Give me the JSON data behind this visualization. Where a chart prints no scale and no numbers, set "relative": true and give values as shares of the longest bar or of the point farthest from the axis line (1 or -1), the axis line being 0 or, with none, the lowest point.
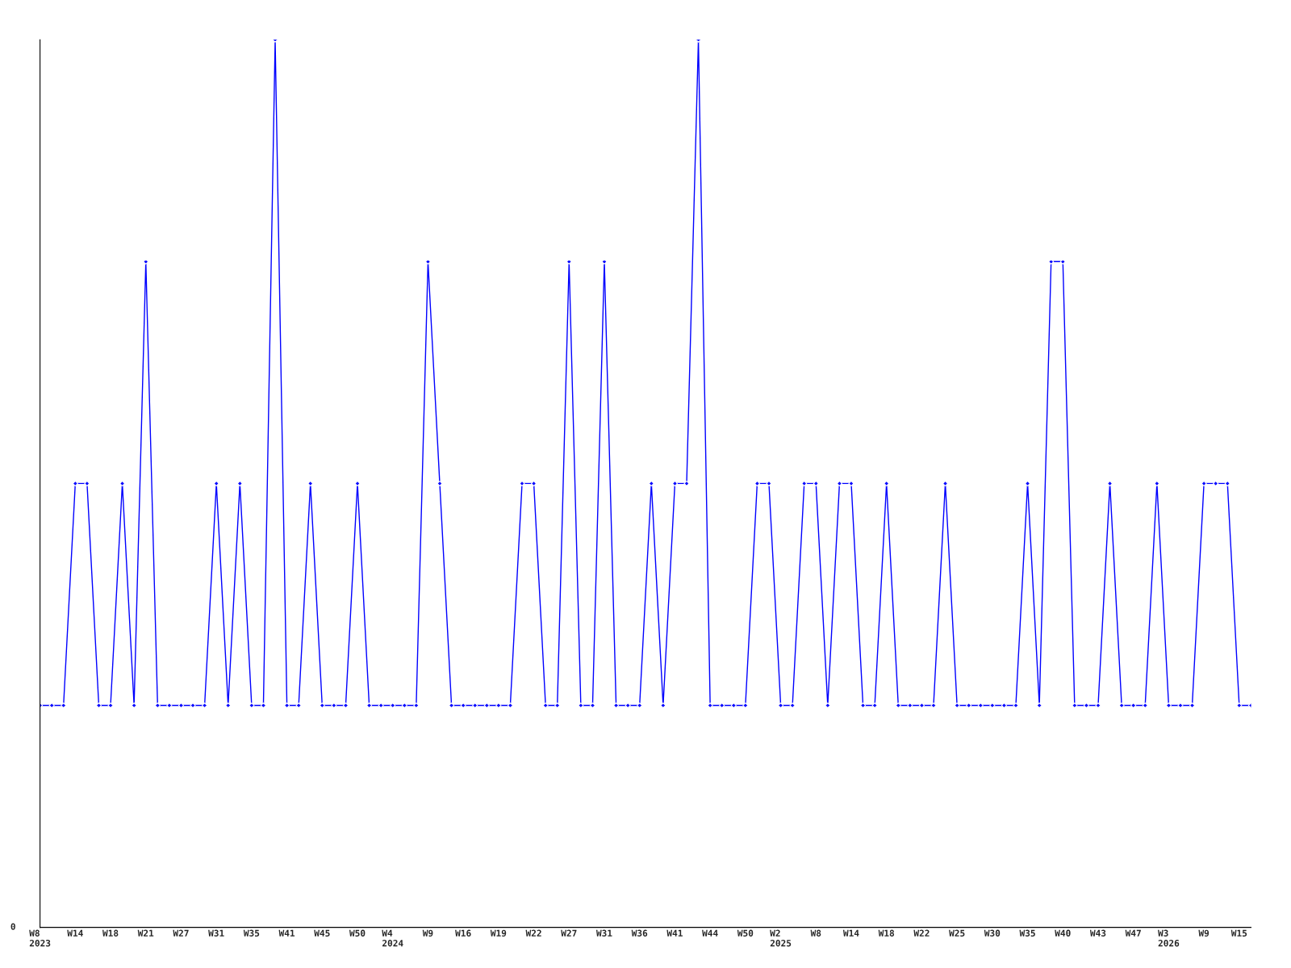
{
  "chart_data": {
    "type": "line",
    "relative": true,
    "tick_labels": "x",
    "marker": "diamond",
    "line_style": "solid",
    "grid": false,
    "legend": false,
    "annotations": [
      "0"
    ],
    "categories": [
      "W8\n2023",
      null,
      null,
      "W14",
      null,
      null,
      "W18",
      null,
      null,
      "W21",
      null,
      null,
      "W27",
      null,
      null,
      "W31",
      null,
      null,
      "W35",
      null,
      null,
      "W41",
      null,
      null,
      "W45",
      null,
      null,
      "W50",
      null,
      null,
      "W4\n2024",
      null,
      null,
      "W9",
      null,
      null,
      "W16",
      null,
      null,
      "W19",
      null,
      null,
      "W22",
      null,
      null,
      "W27",
      null,
      null,
      "W31",
      null,
      null,
      "W36",
      null,
      null,
      "W41",
      null,
      null,
      "W44",
      null,
      null,
      "W50",
      null,
      null,
      "W2\n2025",
      null,
      null,
      "W8",
      null,
      null,
      "W14",
      null,
      null,
      "W18",
      null,
      null,
      "W22",
      null,
      null,
      "W25",
      null,
      null,
      "W30",
      null,
      null,
      "W35",
      null,
      null,
      "W40",
      null,
      null,
      "W43",
      null,
      null,
      "W47",
      null,
      null,
      "W3\n2026",
      null,
      null,
      "W9",
      null,
      null,
      "W15",
      null
    ],
    "series": [
      {
        "color": "#0000ff",
        "values": [
          0.25,
          0.25,
          0.25,
          0.5,
          0.5,
          0.25,
          0.25,
          0.5,
          0.25,
          0.75,
          0.25,
          0.25,
          0.25,
          0.25,
          0.25,
          0.5,
          0.25,
          0.5,
          0.25,
          0.25,
          1,
          0.25,
          0.25,
          0.5,
          0.25,
          0.25,
          0.25,
          0.5,
          0.25,
          0.25,
          0.25,
          0.25,
          0.25,
          0.75,
          0.5,
          0.25,
          0.25,
          0.25,
          0.25,
          0.25,
          0.25,
          0.5,
          0.5,
          0.25,
          0.25,
          0.75,
          0.25,
          0.25,
          0.75,
          0.25,
          0.25,
          0.25,
          0.5,
          0.25,
          0.5,
          0.5,
          1,
          0.25,
          0.25,
          0.25,
          0.25,
          0.5,
          0.5,
          0.25,
          0.25,
          0.5,
          0.5,
          0.25,
          0.5,
          0.5,
          0.25,
          0.25,
          0.5,
          0.25,
          0.25,
          0.25,
          0.25,
          0.5,
          0.25,
          0.25,
          0.25,
          0.25,
          0.25,
          0.25,
          0.5,
          0.25,
          0.75,
          0.75,
          0.25,
          0.25,
          0.25,
          0.5,
          0.25,
          0.25,
          0.25,
          0.5,
          0.25,
          0.25,
          0.25,
          0.5,
          0.5,
          0.5,
          0.25,
          0.25
        ]
      }
    ]
  }
}
